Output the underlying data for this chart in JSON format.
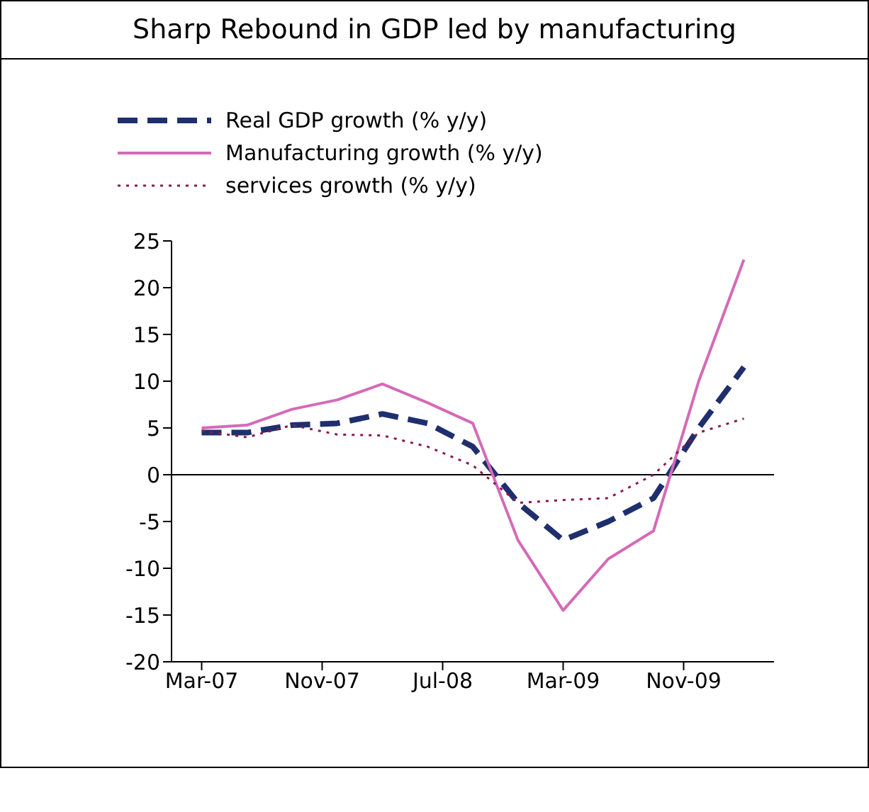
{
  "chart_data": {
    "type": "line",
    "title": "Sharp Rebound in GDP led by manufacturing",
    "x": [
      "2007-03",
      "2007-06",
      "2007-09",
      "2007-12",
      "2008-03",
      "2008-06",
      "2008-09",
      "2008-12",
      "2009-03",
      "2009-06",
      "2009-09",
      "2009-12",
      "2010-03"
    ],
    "series": [
      {
        "name": "Real GDP growth (% y/y)",
        "color": "#1f2f6e",
        "line_style": "dashed",
        "values": [
          4.5,
          4.5,
          5.3,
          5.5,
          6.5,
          5.5,
          3,
          -3,
          -7,
          -5,
          -2.5,
          5,
          11.5
        ]
      },
      {
        "name": "Manufacturing growth (% y/y)",
        "color": "#d46ab8",
        "line_style": "solid",
        "values": [
          5,
          5.3,
          7,
          8,
          9.7,
          7.7,
          5.5,
          -7,
          -14.5,
          -9,
          -6,
          10,
          23
        ]
      },
      {
        "name": "services growth (% y/y)",
        "color": "#8b1a4a",
        "line_style": "dotted",
        "values": [
          4.7,
          4,
          5.3,
          4.3,
          4.2,
          3,
          1,
          -3,
          -2.7,
          -2.5,
          0,
          4.5,
          6
        ]
      }
    ],
    "ylim": [
      -20,
      25
    ],
    "yticks": [
      -20,
      -15,
      -10,
      -5,
      0,
      5,
      10,
      15,
      20,
      25
    ],
    "xlim": [
      "2007-01",
      "2010-05"
    ],
    "xticks": [
      {
        "value": "2007-03",
        "label": "Mar-07"
      },
      {
        "value": "2007-11",
        "label": "Nov-07"
      },
      {
        "value": "2008-07",
        "label": "Jul-08"
      },
      {
        "value": "2009-03",
        "label": "Mar-09"
      },
      {
        "value": "2009-11",
        "label": "Nov-09"
      }
    ],
    "ref_lines": [
      {
        "axis": "y",
        "value": 0,
        "color": "#000000"
      }
    ],
    "grid": false,
    "legend": "top left",
    "marker": "none"
  }
}
